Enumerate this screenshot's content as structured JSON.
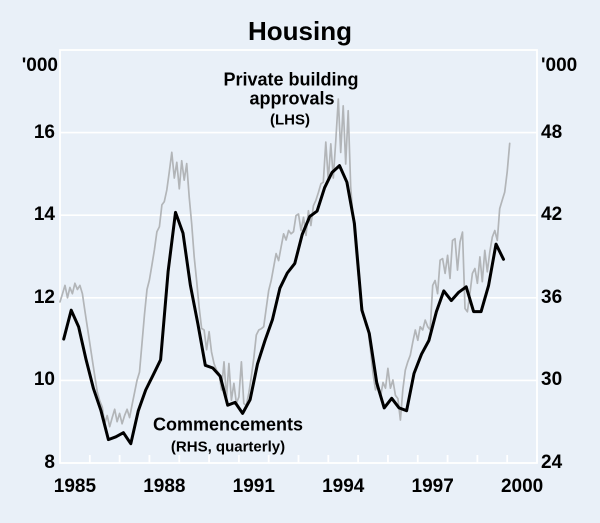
{
  "title": "Housing",
  "colors": {
    "background": "#e9f0f8",
    "grid": "#ffffff",
    "approvals_line": "#b2b5b8",
    "commencements_line": "#000000",
    "text": "#000000"
  },
  "annotations": {
    "approvals": {
      "line1": "Private building",
      "line2": "approvals",
      "line3": "(LHS)"
    },
    "commencements": {
      "line1": "Commencements",
      "line2": "(RHS, quarterly)"
    }
  },
  "chart_data": {
    "type": "line",
    "title": "Housing",
    "left_axis": {
      "unit": "'000",
      "min": 8,
      "max": 18,
      "tick_labels": [
        8,
        10,
        12,
        14,
        16
      ],
      "gridlines": [
        10,
        12,
        14,
        16
      ]
    },
    "right_axis": {
      "unit": "'000",
      "min": 24,
      "max": 54,
      "tick_labels": [
        24,
        30,
        36,
        42,
        48
      ]
    },
    "x_axis": {
      "domain_start_year": 1985,
      "domain_end_year": 2001,
      "tick_every_years": 1,
      "labels": [
        "1985",
        "1988",
        "1991",
        "1994",
        "1997",
        "2000"
      ]
    },
    "series": [
      {
        "name": "Private building approvals",
        "axis": "left",
        "frequency": "monthly",
        "start": "1985-01",
        "values": [
          11.9,
          12.1,
          12.3,
          12.0,
          12.25,
          12.1,
          12.35,
          12.2,
          12.3,
          12.1,
          11.7,
          11.3,
          10.9,
          10.5,
          10.1,
          9.72,
          9.5,
          9.36,
          8.96,
          9.15,
          8.88,
          9.1,
          9.3,
          9.0,
          9.2,
          8.95,
          9.15,
          9.3,
          9.1,
          9.4,
          9.7,
          10.0,
          10.2,
          10.9,
          11.6,
          12.2,
          12.43,
          12.79,
          13.16,
          13.6,
          13.72,
          14.25,
          14.33,
          14.61,
          15.05,
          15.52,
          14.9,
          15.28,
          14.64,
          15.32,
          14.85,
          15.25,
          14.44,
          13.79,
          12.99,
          12.42,
          11.78,
          11.26,
          11.22,
          10.74,
          11.18,
          10.69,
          10.41,
          10.25,
          10.17,
          9.77,
          10.45,
          9.57,
          10.41,
          9.52,
          9.93,
          9.44,
          9.6,
          10.45,
          9.44,
          9.39,
          9.69,
          10.09,
          10.54,
          11.1,
          11.22,
          11.25,
          11.3,
          11.74,
          12.18,
          12.42,
          12.75,
          13.07,
          12.9,
          13.23,
          13.55,
          13.4,
          13.63,
          13.55,
          13.6,
          13.99,
          14.03,
          13.63,
          13.95,
          13.51,
          14.11,
          13.75,
          14.23,
          14.36,
          14.55,
          14.76,
          14.8,
          15.77,
          14.84,
          15.73,
          14.9,
          15.81,
          16.81,
          15.52,
          16.65,
          15.24,
          16.53,
          14.68,
          13.9,
          13.2,
          12.55,
          12.05,
          11.65,
          11.35,
          11.21,
          10.73,
          10.17,
          9.77,
          9.93,
          9.6,
          9.95,
          9.81,
          10.29,
          9.81,
          10.01,
          9.64,
          9.56,
          9.04,
          9.77,
          10.25,
          10.45,
          10.61,
          10.93,
          11.22,
          10.97,
          11.3,
          11.22,
          11.46,
          11.3,
          11.22,
          12.3,
          12.42,
          12.1,
          12.91,
          12.95,
          12.59,
          13.03,
          12.47,
          13.39,
          13.43,
          12.67,
          13.35,
          13.59,
          11.74,
          11.66,
          12.1,
          12.59,
          12.71,
          12.35,
          12.99,
          12.39,
          13.15,
          12.63,
          13.11,
          13.47,
          13.63,
          13.39,
          14.16,
          14.36,
          14.56,
          15.05,
          15.74
        ]
      },
      {
        "name": "Commencements",
        "axis": "right",
        "frequency": "quarterly",
        "start": "1985Q1",
        "values": [
          33.0,
          35.1,
          33.9,
          31.5,
          29.4,
          27.8,
          25.7,
          25.9,
          26.2,
          25.4,
          27.8,
          29.3,
          30.4,
          31.5,
          37.9,
          42.2,
          40.7,
          36.9,
          34.1,
          31.1,
          30.9,
          30.3,
          28.2,
          28.4,
          27.6,
          28.6,
          31.2,
          32.9,
          34.4,
          36.7,
          37.8,
          38.5,
          40.6,
          41.9,
          42.3,
          44.0,
          45.1,
          45.6,
          44.4,
          41.4,
          35.1,
          33.4,
          29.8,
          28.0,
          28.7,
          28.0,
          27.8,
          30.5,
          31.9,
          32.9,
          35.0,
          36.5,
          35.8,
          36.4,
          36.8,
          35.0,
          35.0,
          36.9,
          39.9,
          38.8
        ]
      }
    ]
  }
}
